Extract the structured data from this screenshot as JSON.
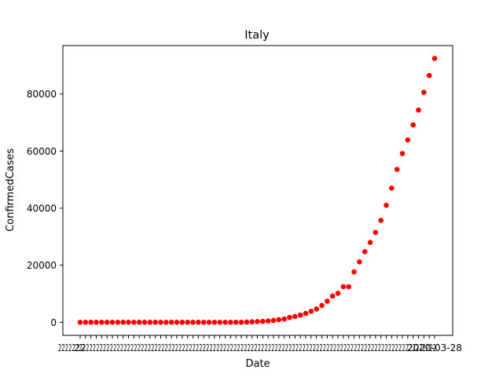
{
  "chart_data": {
    "type": "scatter",
    "title": "Italy",
    "xlabel": "Date",
    "ylabel": "ConfirmedCases",
    "x_tick_labels_note": "",
    "x_tick_first": "22",
    "x_tick_last": "2020-03-28",
    "ylim": [
      -4600,
      97000
    ],
    "yticks": [
      0,
      20000,
      40000,
      60000,
      80000
    ],
    "grid": false,
    "legend": "none",
    "marker_color": "#ff0000",
    "values": [
      0,
      0,
      0,
      0,
      0,
      0,
      0,
      0,
      0,
      2,
      2,
      2,
      2,
      2,
      3,
      3,
      3,
      3,
      3,
      3,
      3,
      3,
      3,
      3,
      3,
      3,
      3,
      3,
      3,
      3,
      3,
      62,
      155,
      229,
      322,
      453,
      655,
      888,
      1128,
      1694,
      2036,
      2502,
      3089,
      3858,
      4636,
      5883,
      7375,
      9172,
      10149,
      12462,
      12462,
      17660,
      21157,
      24747,
      27980,
      31506,
      35713,
      41035,
      47021,
      53578,
      59138,
      63927,
      69176,
      74386,
      80589,
      86498,
      92472
    ]
  }
}
